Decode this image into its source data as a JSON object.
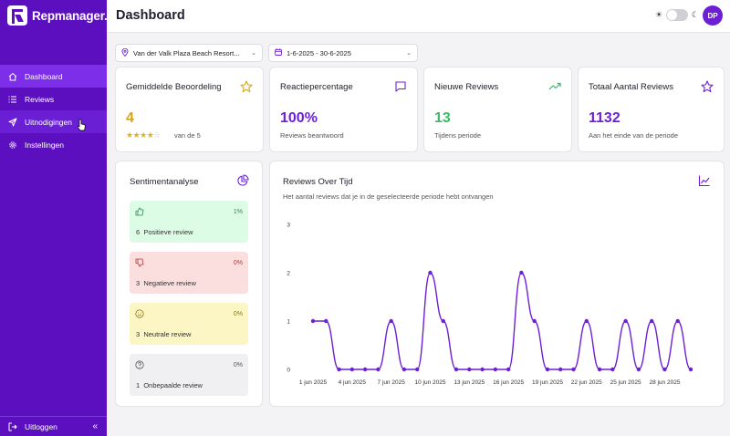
{
  "app": {
    "logo_text": "Repmanager.ai"
  },
  "sidebar": {
    "items": [
      {
        "label": "Dashboard",
        "icon": "home-icon",
        "active": true
      },
      {
        "label": "Reviews",
        "icon": "list-icon"
      },
      {
        "label": "Uitnodigingen",
        "icon": "send-icon"
      },
      {
        "label": "Instellingen",
        "icon": "gear-icon"
      }
    ],
    "logout_label": "Uitloggen",
    "collapse_icon": "chevrons-left-icon"
  },
  "header": {
    "title": "Dashboard",
    "avatar_initials": "DP"
  },
  "filters": {
    "hotel": "Van der Valk Plaza Beach Resort...",
    "date_range": "1-6-2025 - 30-6-2025"
  },
  "colors": {
    "brand": "#5b0fbf",
    "accent": "#6d1fd6",
    "yellow": "#d9a514",
    "green": "#3cb96a",
    "purple": "#6d1fd6"
  },
  "stats": {
    "avg_rating": {
      "title": "Gemiddelde Beoordeling",
      "value": "4",
      "sub": "van de 5",
      "stars": 4
    },
    "response": {
      "title": "Reactiepercentage",
      "value": "100%",
      "sub": "Reviews beantwoord"
    },
    "new_reviews": {
      "title": "Nieuwe Reviews",
      "value": "13",
      "sub": "Tijdens periode"
    },
    "total": {
      "title": "Totaal Aantal Reviews",
      "value": "1132",
      "sub": "Aan het einde van de periode"
    }
  },
  "sentiment": {
    "title": "Sentimentanalyse",
    "positive": {
      "pct": "1%",
      "label": "Positieve review",
      "count": "6"
    },
    "negative": {
      "pct": "0%",
      "label": "Negatieve review",
      "count": "3"
    },
    "neutral": {
      "pct": "0%",
      "label": "Neutrale review",
      "count": "3"
    },
    "undetermined": {
      "pct": "0%",
      "label": "Onbepaalde review",
      "count": "1"
    }
  },
  "chart_card": {
    "title": "Reviews Over Tijd",
    "subtitle": "Het aantal reviews dat je in de geselecteerde periode hebt ontvangen"
  },
  "chart_data": {
    "type": "line",
    "x": [
      "1 jun 2025",
      "2 jun 2025",
      "3 jun 2025",
      "4 jun 2025",
      "5 jun 2025",
      "6 jun 2025",
      "7 jun 2025",
      "8 jun 2025",
      "9 jun 2025",
      "10 jun 2025",
      "11 jun 2025",
      "12 jun 2025",
      "13 jun 2025",
      "14 jun 2025",
      "15 jun 2025",
      "16 jun 2025",
      "17 jun 2025",
      "18 jun 2025",
      "19 jun 2025",
      "20 jun 2025",
      "21 jun 2025",
      "22 jun 2025",
      "23 jun 2025",
      "24 jun 2025",
      "25 jun 2025",
      "26 jun 2025",
      "27 jun 2025",
      "28 jun 2025",
      "29 jun 2025",
      "30 jun 2025"
    ],
    "series": [
      {
        "values": [
          1,
          1,
          0,
          0,
          0,
          0,
          1,
          0,
          0,
          2,
          1,
          0,
          0,
          0,
          0,
          0,
          2,
          1,
          0,
          0,
          0,
          1,
          0,
          0,
          1,
          0,
          1,
          0,
          1,
          0
        ]
      }
    ],
    "x_tick_labels": [
      "1 jun 2025",
      "4 jun 2025",
      "7 jun 2025",
      "10 jun 2025",
      "13 jun 2025",
      "16 jun 2025",
      "19 jun 2025",
      "22 jun 2025",
      "25 jun 2025",
      "28 jun 2025"
    ],
    "y_ticks": [
      "0",
      "1",
      "2",
      "3"
    ],
    "ylim": [
      0,
      3
    ],
    "grid": false
  }
}
